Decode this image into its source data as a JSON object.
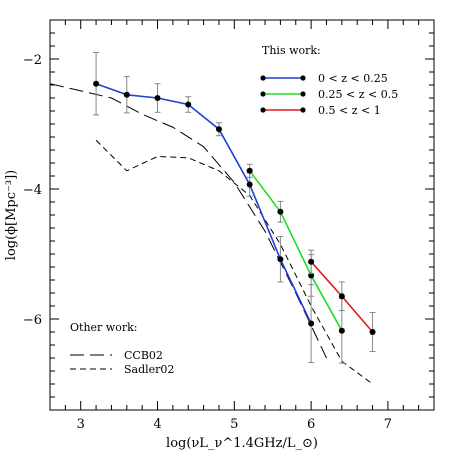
{
  "chart_data": {
    "type": "line",
    "xlabel": "log(νL_ν^1.4GHz/L_⊙)",
    "ylabel": "log(ϕ[Mpc⁻³])",
    "xlim": [
      2.6,
      7.6
    ],
    "ylim": [
      -7.4,
      -1.4
    ],
    "xticks": [
      3,
      4,
      5,
      6,
      7
    ],
    "xtick_labels": [
      "3",
      "4",
      "5",
      "6",
      "7"
    ],
    "yticks": [
      -2,
      -4,
      -6
    ],
    "ytick_labels": [
      "−2",
      "−4",
      "−6"
    ],
    "grid": false,
    "legend_this_title": "This work:",
    "legend_other_title": "Other work:",
    "series": [
      {
        "name": "0 < z < 0.25",
        "color": "#1f3fd6",
        "x": [
          3.2,
          3.6,
          4.0,
          4.4,
          4.8,
          5.2,
          5.6,
          6.0
        ],
        "y": [
          -2.38,
          -2.55,
          -2.6,
          -2.7,
          -3.08,
          -3.93,
          -5.08,
          -6.07
        ],
        "err": [
          0.48,
          0.28,
          0.22,
          0.12,
          0.1,
          0.18,
          0.35,
          0.6
        ]
      },
      {
        "name": "0.25 < z < 0.5",
        "color": "#22dd22",
        "x": [
          5.2,
          5.6,
          6.0,
          6.4
        ],
        "y": [
          -3.72,
          -4.35,
          -5.33,
          -6.18
        ],
        "err": [
          0.1,
          0.16,
          0.32,
          0.5
        ]
      },
      {
        "name": "0.5 < z < 1",
        "color": "#e01b1b",
        "x": [
          6.0,
          6.4,
          6.8
        ],
        "y": [
          -5.12,
          -5.65,
          -6.2
        ],
        "err": [
          0.18,
          0.22,
          0.3
        ]
      },
      {
        "name": "CCB02",
        "dash": "long",
        "x": [
          2.6,
          3.4,
          3.8,
          4.2,
          4.6,
          5.0,
          5.4,
          5.8,
          6.2
        ],
        "y": [
          -2.38,
          -2.6,
          -2.85,
          -3.05,
          -3.35,
          -3.9,
          -4.65,
          -5.6,
          -6.6
        ]
      },
      {
        "name": "Sadler02",
        "dash": "short",
        "x": [
          3.2,
          3.6,
          4.0,
          4.4,
          4.8,
          5.2,
          5.6,
          6.0,
          6.4,
          6.8
        ],
        "y": [
          -3.25,
          -3.72,
          -3.5,
          -3.52,
          -3.72,
          -4.1,
          -4.85,
          -5.8,
          -6.65,
          -7.0
        ]
      }
    ]
  }
}
